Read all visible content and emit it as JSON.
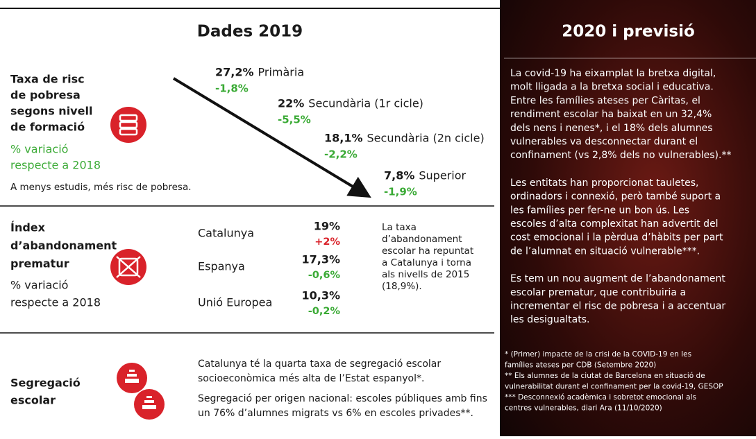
{
  "left": {
    "title": "Dades 2019",
    "poverty": {
      "label": [
        "Taxa de risc",
        "de pobresa",
        "segons nivell",
        "de formació"
      ],
      "variation_label": [
        "% variació",
        "respecte a 2018"
      ],
      "note": "A menys estudis, més risc de pobresa.",
      "items": [
        {
          "value": "27,2%",
          "name": "Primària",
          "change": "-1,8%"
        },
        {
          "value": "22%",
          "name": "Secundària (1r cicle)",
          "change": "-5,5%"
        },
        {
          "value": "18,1%",
          "name": "Secundària (2n cicle)",
          "change": "-2,2%"
        },
        {
          "value": "7,8%",
          "name": "Superior",
          "change": "-1,9%"
        }
      ]
    },
    "dropout": {
      "label": [
        "Índex",
        "d’abandonament",
        "prematur"
      ],
      "variation_label": [
        "% variació",
        "respecte a 2018"
      ],
      "rows": [
        {
          "name": "Catalunya",
          "value": "19%",
          "change": "+2%"
        },
        {
          "name": "Espanya",
          "value": "17,3%",
          "change": "-0,6%"
        },
        {
          "name": "Unió Europea",
          "value": "10,3%",
          "change": "-0,2%"
        }
      ],
      "note": [
        "La taxa",
        "d’abandonament",
        "escolar ha repuntat",
        "a Catalunya i torna",
        "als nivells de 2015",
        "(18,9%)."
      ]
    },
    "segregation": {
      "label": [
        "Segregació",
        "escolar"
      ],
      "texts": [
        [
          "Catalunya té la quarta taxa de segregació escolar",
          "socioeconòmica més alta de l’Estat espanyol*."
        ],
        [
          "Segregació per origen nacional: escoles públiques amb fins",
          "un 76% d’alumnes migrats vs 6% en escoles privades**."
        ]
      ]
    }
  },
  "right": {
    "title": "2020 i previsió",
    "paragraphs": [
      [
        "La covid-19 ha eixamplat la bretxa digital,",
        "molt lligada a la bretxa social i educativa.",
        "Entre les famílies ateses per Càritas, el",
        "rendiment escolar ha baixat en un 32,4%",
        "dels nens i nenes*, i el 18% dels alumnes",
        "vulnerables va desconnectar durant el",
        "confinament (vs 2,8% dels no vulnerables).**"
      ],
      [
        "Les entitats han proporcionat tauletes,",
        "ordinadors i connexió, però també suport a",
        "les famílies per fer-ne un bon ús. Les",
        "escoles d’alta complexitat han advertit del",
        "cost emocional i la pèrdua d’hàbits per part",
        "de l’alumnat en situació vulnerable***."
      ],
      [
        "Es tem un nou augment de l’abandonament",
        "escolar prematur, que contribuiria a",
        "incrementar el risc de pobresa i a accentuar",
        "les desigualtats."
      ]
    ],
    "footnotes": [
      "* (Primer) impacte de la crisi de la COVID-19 en les",
      "famílies ateses per CDB (Setembre 2020)",
      "** Els alumnes de la ciutat de Barcelona en situació de",
      "vulnerabilitat durant el confinament per la covid-19, GESOP",
      "*** Desconnexió acadèmica i sobretot emocional als",
      "centres vulnerables, diari Ara (11/10/2020)"
    ]
  }
}
